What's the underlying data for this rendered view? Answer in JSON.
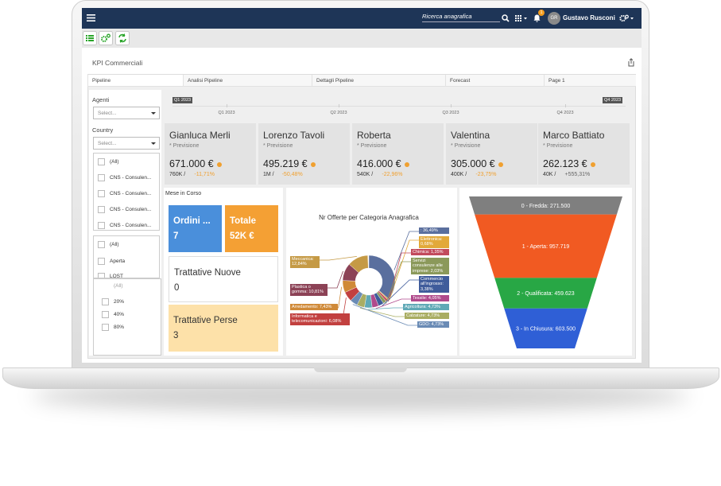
{
  "navbar": {
    "search_placeholder": "Ricerca anagrafica",
    "notifications": "1",
    "avatar": "GR",
    "user": "Gustavo Rusconi"
  },
  "page_title": "KPI Commerciali",
  "tabs": [
    "Pipeline",
    "Analisi Pipeline",
    "Dettagli Pipeline",
    "Forecast",
    "Page 1"
  ],
  "filters": {
    "agenti_label": "Agenti",
    "agenti_placeholder": "Select...",
    "country_label": "Country",
    "country_placeholder": "Select...",
    "country_options": [
      "(All)",
      "CNS - Consulen...",
      "CNS - Consulen...",
      "CNS - Consulen...",
      "CNS - Consulen..."
    ],
    "status_options": [
      "(All)",
      "Aperta",
      "LOST"
    ],
    "probability_options": [
      "(All)",
      "20%",
      "40%",
      "80%"
    ]
  },
  "timeline": {
    "start": "Q1 2023",
    "end": "Q4 2023",
    "ticks": [
      "Q1 2023",
      "Q2 2023",
      "Q3 2023",
      "Q4 2023"
    ]
  },
  "kpi_cards": [
    {
      "name": "Gianluca Merli",
      "caption": "* Previsione",
      "value": "671.000 €",
      "target": "760K /",
      "delta": "-11,71%",
      "delta_color": "#f0a030"
    },
    {
      "name": "Lorenzo Tavoli",
      "caption": "* Previsione",
      "value": "495.219 €",
      "target": "1M /",
      "delta": "-50,48%",
      "delta_color": "#f0a030"
    },
    {
      "name": "Roberta",
      "caption": "* Previsione",
      "value": "416.000 €",
      "target": "540K /",
      "delta": "-22,96%",
      "delta_color": "#f0a030"
    },
    {
      "name": "Valentina",
      "caption": "* Previsione",
      "value": "305.000 €",
      "target": "400K /",
      "delta": "-23,75%",
      "delta_color": "#f0a030"
    },
    {
      "name": "Marco Battiato",
      "caption": "* Previsione",
      "value": "262.123 €",
      "target": "40K /",
      "delta": "+555,31%",
      "delta_color": "#666666"
    }
  ],
  "monthly": {
    "title": "Mese in Corso",
    "tiles": [
      {
        "label": "Ordini ...",
        "value": "7"
      },
      {
        "label": "Totale",
        "value": "52K €"
      },
      {
        "label": "Trattative Nuove",
        "value": "0"
      },
      {
        "label": "Trattative Perse",
        "value": "3"
      }
    ]
  },
  "donut": {
    "title": "Nr Offerte per Categoria Anagrafica",
    "slices": [
      {
        "label": ": 36,49%",
        "value": 36.49,
        "color": "#5a6f9e"
      },
      {
        "label": "Elettronica: 0,68%",
        "value": 0.68,
        "color": "#e2a93a"
      },
      {
        "label": "Chimica: 1,35%",
        "value": 1.35,
        "color": "#c24a5c"
      },
      {
        "label": "Servizi consulenze alle imprese: 2,03%",
        "value": 2.03,
        "color": "#8b995a"
      },
      {
        "label": "Commercio all'ingrosso: 3,38%",
        "value": 3.38,
        "color": "#3f5c9b"
      },
      {
        "label": "Tessile: 4,05%",
        "value": 4.05,
        "color": "#b04a8c"
      },
      {
        "label": "Agricoltura: 4,73%",
        "value": 4.73,
        "color": "#5fa9b6"
      },
      {
        "label": "Calzature: 4,73%",
        "value": 4.73,
        "color": "#a9ad62"
      },
      {
        "label": "GDO: 4,73%",
        "value": 4.73,
        "color": "#6a8bb5"
      },
      {
        "label": "Informatica e telecomunicazioni: 6,08%",
        "value": 6.08,
        "color": "#c2403f"
      },
      {
        "label": "Arredamento: 7,43%",
        "value": 7.43,
        "color": "#d08a38"
      },
      {
        "label": "Plastica o gomma: 10,81%",
        "value": 10.81,
        "color": "#8c4256"
      },
      {
        "label": "Meccanica: 12,84%",
        "value": 12.84,
        "color": "#c59a45"
      }
    ]
  },
  "funnel": {
    "stages": [
      {
        "label": "0 - Fredda: 271.500",
        "value": 271500,
        "color": "#7f7f7f"
      },
      {
        "label": "1 - Aperta: 957.719",
        "value": 957719,
        "color": "#f15a22"
      },
      {
        "label": "2 - Qualificata: 459.623",
        "value": 459623,
        "color": "#28a745"
      },
      {
        "label": "3 - In Chiusura: 603.500",
        "value": 603500,
        "color": "#2f5fd6"
      }
    ]
  }
}
